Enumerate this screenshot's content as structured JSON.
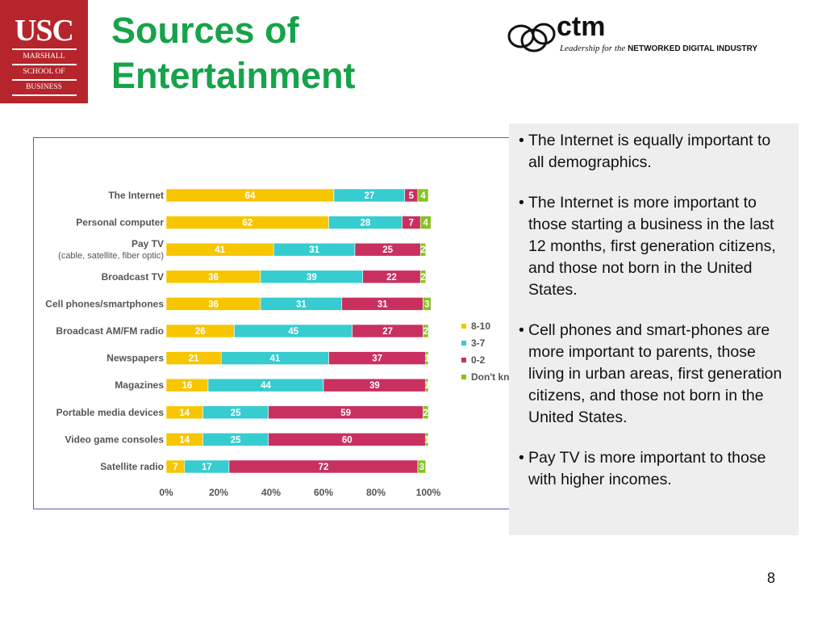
{
  "usc_logo": {
    "big": "USC",
    "line1": "MARSHALL",
    "line2": "SCHOOL OF",
    "line3": "BUSINESS"
  },
  "title": {
    "line1": "Sources of",
    "line2": "Entertainment"
  },
  "ctm_logo": {
    "word": "ctm",
    "tag_italic": "Leadership for the",
    "tag_bold": "NETWORKED DIGITAL INDUSTRY"
  },
  "colors": {
    "title_green": "#16a34a",
    "usc_red": "#b5252b"
  },
  "chart_data": {
    "type": "bar",
    "orientation": "horizontal",
    "stacked": "percent",
    "categories": [
      [
        "The Internet"
      ],
      [
        "Personal computer"
      ],
      [
        "Pay TV",
        "(cable, satellite, fiber optic)"
      ],
      [
        "Broadcast TV"
      ],
      [
        "Cell phones/smartphones"
      ],
      [
        "Broadcast AM/FM radio"
      ],
      [
        "Newspapers"
      ],
      [
        "Magazines"
      ],
      [
        "Portable media devices"
      ],
      [
        "Video game consoles"
      ],
      [
        "Satellite radio"
      ]
    ],
    "series": [
      {
        "name": "8-10",
        "color": "#f7c600",
        "values": [
          64,
          62,
          41,
          36,
          36,
          26,
          21,
          16,
          14,
          14,
          7
        ]
      },
      {
        "name": "3-7",
        "color": "#36ccd0",
        "values": [
          27,
          28,
          31,
          39,
          31,
          45,
          41,
          44,
          25,
          25,
          17
        ]
      },
      {
        "name": "0-2",
        "color": "#c9305f",
        "values": [
          5,
          7,
          25,
          22,
          31,
          27,
          37,
          39,
          59,
          60,
          72
        ]
      },
      {
        "name": "Don't know",
        "color": "#86c21f",
        "values": [
          4,
          4,
          2,
          2,
          3,
          2,
          1,
          1,
          2,
          1,
          3
        ]
      }
    ],
    "xticks": [
      "0%",
      "20%",
      "40%",
      "60%",
      "80%",
      "100%"
    ],
    "xlim": [
      0,
      100
    ],
    "legend": "right",
    "grid": false
  },
  "notes": [
    "The Internet is equally important to all demographics.",
    "The Internet is more important to those starting a business in the last 12 months, first generation citizens, and those not born in the United States.",
    "Cell phones and smart-phones are more important to parents, those living in urban areas, first generation citizens, and those not born in the United States.",
    "Pay TV is more important to those with higher incomes."
  ],
  "bullet": "•",
  "page_number": "8"
}
